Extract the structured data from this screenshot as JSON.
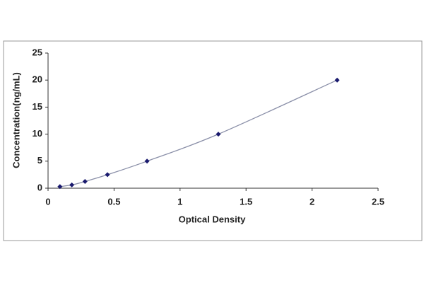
{
  "chart_data": {
    "type": "scatter",
    "x_label": "Optical Density",
    "y_label": "Concentration(ng/mL)",
    "x": [
      0.09,
      0.18,
      0.28,
      0.45,
      0.75,
      1.29,
      2.19
    ],
    "values": [
      0.3,
      0.6,
      1.25,
      2.5,
      5,
      10,
      20
    ],
    "color": "#1a1a6e",
    "line_color": "#8a8fa8",
    "connect": true,
    "xlim": [
      0,
      2.5
    ],
    "xticks": [
      0,
      0.5,
      1,
      1.5,
      2,
      2.5
    ],
    "ylim": [
      0,
      25
    ],
    "yticks": [
      0,
      5,
      10,
      15,
      20,
      25
    ]
  }
}
